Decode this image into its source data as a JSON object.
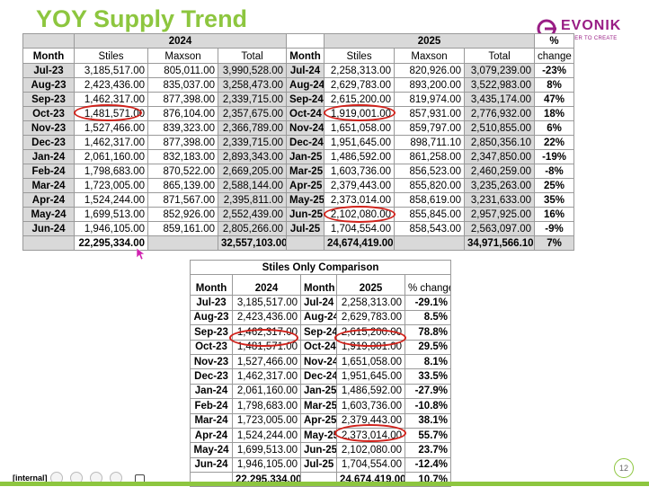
{
  "slide": {
    "title": "YOY Supply Trend",
    "footer_label": "[internal]",
    "page_number": "12",
    "accent_color": "#8dc63f",
    "highlight_color": "#d0211a"
  },
  "logo": {
    "name": "EVONIK",
    "tagline": "POWER TO CREATE",
    "color": "#991d85"
  },
  "main_table": {
    "year_2024": "2024",
    "year_2025": "2025",
    "headers": [
      "Month",
      "Stiles",
      "Maxson",
      "Total",
      "Month",
      "Stiles",
      "Maxson",
      "Total",
      "% change"
    ],
    "pct_header_top": "%",
    "pct_header_bottom": "change",
    "rows": [
      [
        "Jul-23",
        "3,185,517.00",
        "805,011.00",
        "3,990,528.00",
        "Jul-24",
        "2,258,313.00",
        "820,926.00",
        "3,079,239.00",
        "-23%"
      ],
      [
        "Aug-23",
        "2,423,436.00",
        "835,037.00",
        "3,258,473.00",
        "Aug-24",
        "2,629,783.00",
        "893,200.00",
        "3,522,983.00",
        "8%"
      ],
      [
        "Sep-23",
        "1,462,317.00",
        "877,398.00",
        "2,339,715.00",
        "Sep-24",
        "2,615,200.00",
        "819,974.00",
        "3,435,174.00",
        "47%"
      ],
      [
        "Oct-23",
        "1,481,571.00",
        "876,104.00",
        "2,357,675.00",
        "Oct-24",
        "1,919,001.00",
        "857,931.00",
        "2,776,932.00",
        "18%"
      ],
      [
        "Nov-23",
        "1,527,466.00",
        "839,323.00",
        "2,366,789.00",
        "Nov-24",
        "1,651,058.00",
        "859,797.00",
        "2,510,855.00",
        "6%"
      ],
      [
        "Dec-23",
        "1,462,317.00",
        "877,398.00",
        "2,339,715.00",
        "Dec-24",
        "1,951,645.00",
        "898,711.10",
        "2,850,356.10",
        "22%"
      ],
      [
        "Jan-24",
        "2,061,160.00",
        "832,183.00",
        "2,893,343.00",
        "Jan-25",
        "1,486,592.00",
        "861,258.00",
        "2,347,850.00",
        "-19%"
      ],
      [
        "Feb-24",
        "1,798,683.00",
        "870,522.00",
        "2,669,205.00",
        "Mar-25",
        "1,603,736.00",
        "856,523.00",
        "2,460,259.00",
        "-8%"
      ],
      [
        "Mar-24",
        "1,723,005.00",
        "865,139.00",
        "2,588,144.00",
        "Apr-25",
        "2,379,443.00",
        "855,820.00",
        "3,235,263.00",
        "25%"
      ],
      [
        "Apr-24",
        "1,524,244.00",
        "871,567.00",
        "2,395,811.00",
        "May-25",
        "2,373,014.00",
        "858,619.00",
        "3,231,633.00",
        "35%"
      ],
      [
        "May-24",
        "1,699,513.00",
        "852,926.00",
        "2,552,439.00",
        "Jun-25",
        "2,102,080.00",
        "855,845.00",
        "2,957,925.00",
        "16%"
      ],
      [
        "Jun-24",
        "1,946,105.00",
        "859,161.00",
        "2,805,266.00",
        "Jul-25",
        "1,704,554.00",
        "858,543.00",
        "2,563,097.00",
        "-9%"
      ]
    ],
    "totals": [
      "",
      "22,295,334.00",
      "",
      "32,557,103.00",
      "",
      "24,674,419.00",
      "",
      "34,971,566.10",
      "7%"
    ]
  },
  "stiles_table": {
    "title": "Stiles Only Comparison",
    "headers": [
      "Month",
      "2024",
      "Month",
      "2025",
      "% change"
    ],
    "rows": [
      [
        "Jul-23",
        "3,185,517.00",
        "Jul-24",
        "2,258,313.00",
        "-29.1%"
      ],
      [
        "Aug-23",
        "2,423,436.00",
        "Aug-24",
        "2,629,783.00",
        "8.5%"
      ],
      [
        "Sep-23",
        "1,462,317.00",
        "Sep-24",
        "2,615,200.00",
        "78.8%"
      ],
      [
        "Oct-23",
        "1,481,571.00",
        "Oct-24",
        "1,919,001.00",
        "29.5%"
      ],
      [
        "Nov-23",
        "1,527,466.00",
        "Nov-24",
        "1,651,058.00",
        "8.1%"
      ],
      [
        "Dec-23",
        "1,462,317.00",
        "Dec-24",
        "1,951,645.00",
        "33.5%"
      ],
      [
        "Jan-24",
        "2,061,160.00",
        "Jan-25",
        "1,486,592.00",
        "-27.9%"
      ],
      [
        "Feb-24",
        "1,798,683.00",
        "Mar-25",
        "1,603,736.00",
        "-10.8%"
      ],
      [
        "Mar-24",
        "1,723,005.00",
        "Apr-25",
        "2,379,443.00",
        "38.1%"
      ],
      [
        "Apr-24",
        "1,524,244.00",
        "May-25",
        "2,373,014.00",
        "55.7%"
      ],
      [
        "May-24",
        "1,699,513.00",
        "Jun-25",
        "2,102,080.00",
        "23.7%"
      ],
      [
        "Jun-24",
        "1,946,105.00",
        "Jul-25",
        "1,704,554.00",
        "-12.4%"
      ]
    ],
    "totals": [
      "",
      "22,295,334.00",
      "",
      "24,674,419.00",
      "10.7%"
    ]
  }
}
